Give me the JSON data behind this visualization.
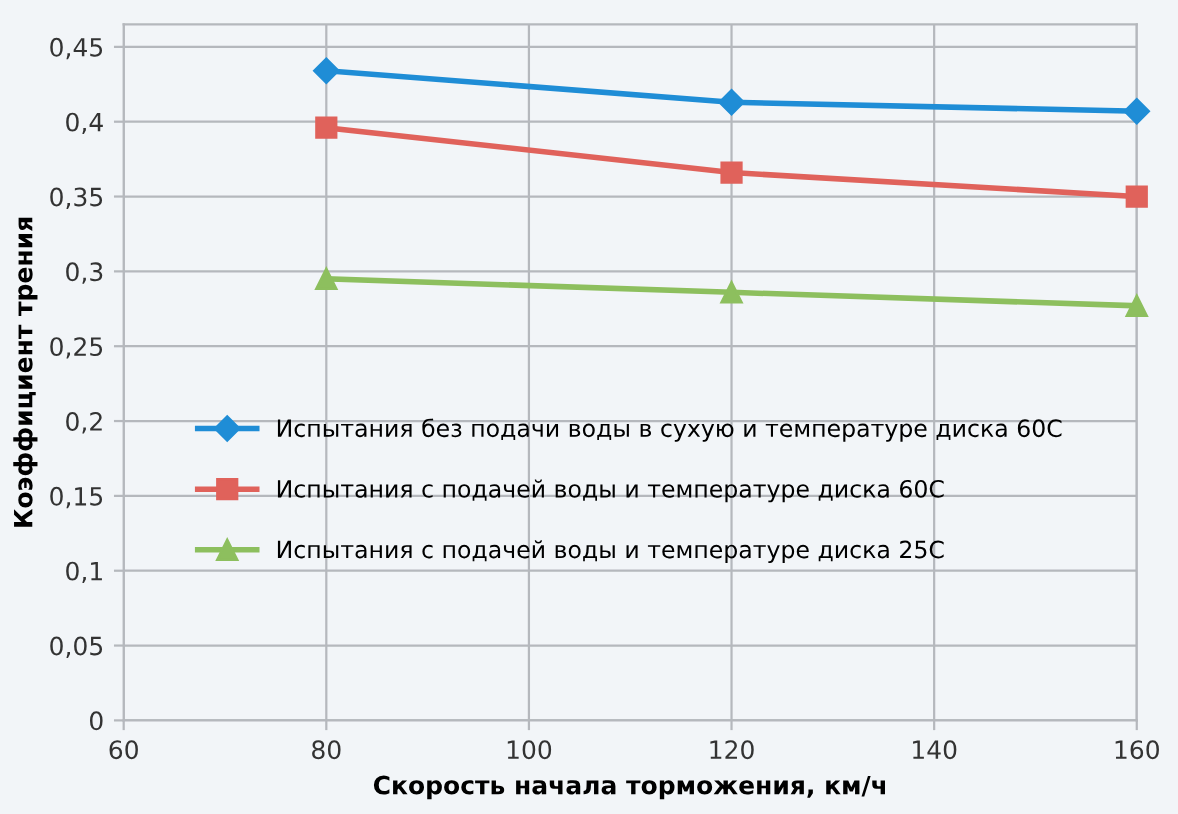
{
  "chart_data": {
    "type": "line",
    "xlabel": "Скорость начала торможения, км/ч",
    "ylabel": "Коэффициент трения",
    "xlim": [
      60,
      160
    ],
    "xticks": [
      60,
      80,
      100,
      120,
      140,
      160
    ],
    "ylim": [
      0,
      0.465
    ],
    "yticks": [
      {
        "value": 0,
        "label": "0"
      },
      {
        "value": 0.05,
        "label": "0,05"
      },
      {
        "value": 0.1,
        "label": "0,1"
      },
      {
        "value": 0.15,
        "label": "0,15"
      },
      {
        "value": 0.2,
        "label": "0,2"
      },
      {
        "value": 0.25,
        "label": "0,25"
      },
      {
        "value": 0.3,
        "label": "0,3"
      },
      {
        "value": 0.35,
        "label": "0,35"
      },
      {
        "value": 0.4,
        "label": "0,4"
      },
      {
        "value": 0.45,
        "label": "0,45"
      }
    ],
    "grid": true,
    "legend": "center",
    "line_style": "solid",
    "x": [
      80,
      120,
      160
    ],
    "series": [
      {
        "name": "Испытания без подачи воды в сухую и температуре диска 60С",
        "color": "#1f8dd6",
        "marker": "diamond",
        "values": [
          0.434,
          0.413,
          0.407
        ]
      },
      {
        "name": "Испытания с подачей воды и температуре диска 60С",
        "color": "#e0625b",
        "marker": "square",
        "values": [
          0.396,
          0.366,
          0.35
        ]
      },
      {
        "name": "Испытания с подачей воды и температуре диска 25С",
        "color": "#8dbf5e",
        "marker": "triangle",
        "values": [
          0.295,
          0.286,
          0.277
        ]
      }
    ]
  }
}
